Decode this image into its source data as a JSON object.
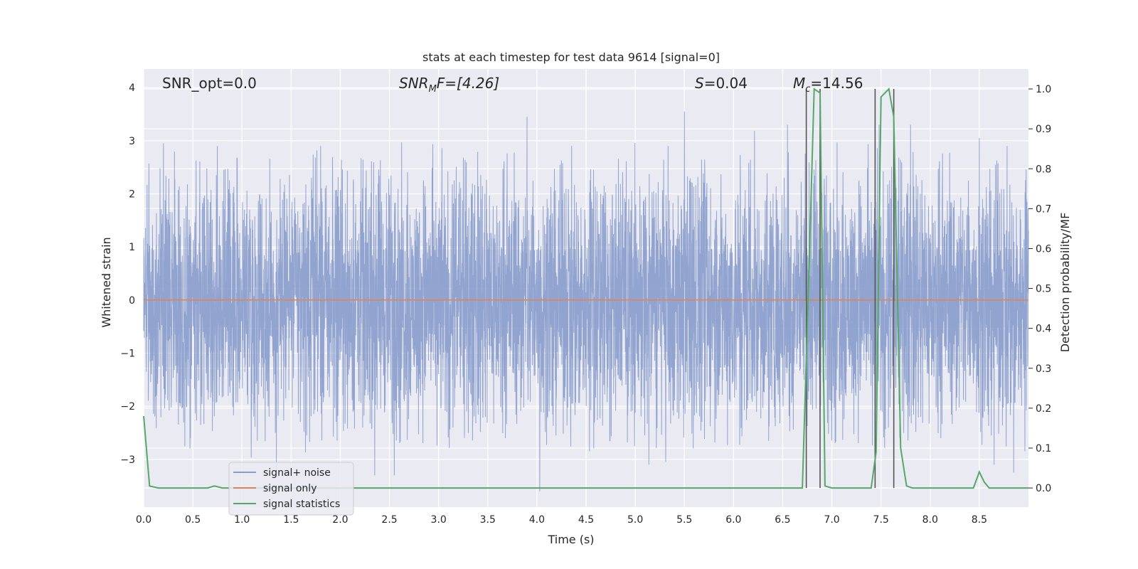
{
  "chart_data": {
    "type": "line",
    "title": "stats at each timestep for test data 9614 [signal=0]",
    "xlabel": "Time (s)",
    "ylabel": "Whitened strain",
    "y2label": "Detection probability/MF",
    "xlim": [
      0,
      9.0
    ],
    "ylim": [
      -3.9,
      4.35
    ],
    "y2lim": [
      -0.048,
      1.05
    ],
    "x_ticks": [
      0.0,
      0.5,
      1.0,
      1.5,
      2.0,
      2.5,
      3.0,
      3.5,
      4.0,
      4.5,
      5.0,
      5.5,
      6.0,
      6.5,
      7.0,
      7.5,
      8.0,
      8.5
    ],
    "x_tick_labels": [
      "0.0",
      "0.5",
      "1.0",
      "1.5",
      "2.0",
      "2.5",
      "3.0",
      "3.5",
      "4.0",
      "4.5",
      "5.0",
      "5.5",
      "6.0",
      "6.5",
      "7.0",
      "7.5",
      "8.0",
      "8.5"
    ],
    "y_ticks": [
      -3,
      -2,
      -1,
      0,
      1,
      2,
      3,
      4
    ],
    "y_tick_labels": [
      "−3",
      "−2",
      "−1",
      "0",
      "1",
      "2",
      "3",
      "4"
    ],
    "y2_ticks": [
      0.0,
      0.1,
      0.2,
      0.3,
      0.4,
      0.5,
      0.6,
      0.7,
      0.8,
      0.9,
      1.0
    ],
    "y2_tick_labels": [
      "0.0",
      "0.1",
      "0.2",
      "0.3",
      "0.4",
      "0.5",
      "0.6",
      "0.7",
      "0.8",
      "0.9",
      "1.0"
    ],
    "grid": true,
    "legend_placement": "lower-left",
    "annotations": {
      "snr_opt": "SNR_opt=0.0",
      "snr_mf_main": "SNR",
      "snr_mf_sub": "M",
      "snr_mf_rest": "F=[4.26]",
      "s_main": "S",
      "s_rest": "=0.04",
      "mc_main": "M",
      "mc_sub": "c",
      "mc_rest": "=14.56"
    },
    "series": [
      {
        "name": "signal+ noise",
        "color": "#8c9fcc",
        "axis": "left",
        "amplitude_core": 1.0,
        "peaks": [
          [
            0.2,
            2.95
          ],
          [
            0.75,
            2.9
          ],
          [
            1.35,
            -3.2
          ],
          [
            1.8,
            2.9
          ],
          [
            2.35,
            -3.3
          ],
          [
            2.55,
            -3.3
          ],
          [
            3.9,
            3.45
          ],
          [
            4.03,
            -3.6
          ],
          [
            5.5,
            3.55
          ],
          [
            6.55,
            3.3
          ],
          [
            7.48,
            3.3
          ],
          [
            7.8,
            3.3
          ],
          [
            8.5,
            3.05
          ],
          [
            8.65,
            -3.1
          ],
          [
            8.85,
            -3.25
          ]
        ]
      },
      {
        "name": "signal only",
        "color": "#dd8452",
        "axis": "left",
        "x": [
          0.0,
          9.0
        ],
        "y": [
          0.0,
          0.0
        ]
      },
      {
        "name": "signal statistics",
        "color": "#55a868",
        "axis": "right",
        "x": [
          0.0,
          0.06,
          0.15,
          0.65,
          0.72,
          0.8,
          2.0,
          4.0,
          6.0,
          6.7,
          6.77,
          6.82,
          6.88,
          6.93,
          7.0,
          7.4,
          7.45,
          7.5,
          7.58,
          7.63,
          7.7,
          7.76,
          7.82,
          8.0,
          8.44,
          8.5,
          8.55,
          8.6,
          9.0
        ],
        "y": [
          0.18,
          0.005,
          0.0,
          0.0,
          0.005,
          0.0,
          0.0,
          0.0,
          0.0,
          0.0,
          0.57,
          1.0,
          0.99,
          0.005,
          0.0,
          0.0,
          0.09,
          0.98,
          1.0,
          0.93,
          0.1,
          0.005,
          0.0,
          0.0,
          0.0,
          0.04,
          0.015,
          0.0,
          0.0
        ]
      }
    ],
    "vertical_markers_x": [
      6.74,
      6.88,
      7.44,
      7.63
    ]
  }
}
